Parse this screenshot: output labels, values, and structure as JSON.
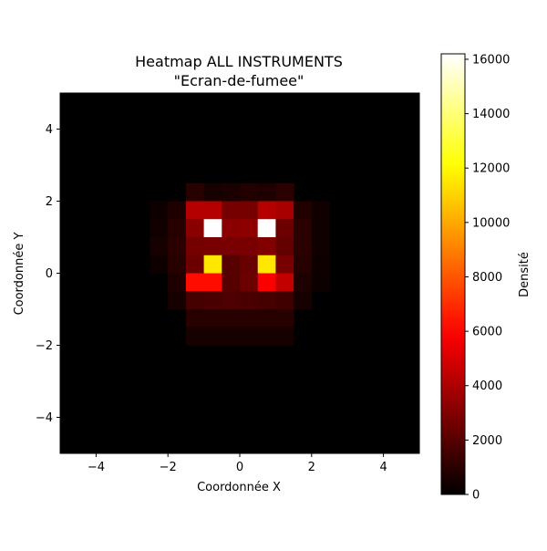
{
  "chart_data": {
    "type": "heatmap",
    "title_line1": "Heatmap ALL INSTRUMENTS",
    "title_line2": "\"Ecran-de-fumee\"",
    "xlabel": "Coordonnée X",
    "ylabel": "Coordonnée Y",
    "xlim": [
      -5,
      5
    ],
    "ylim": [
      -5,
      5
    ],
    "x_ticks": [
      -4,
      -2,
      0,
      2,
      4
    ],
    "y_ticks": [
      -4,
      -2,
      0,
      2,
      4
    ],
    "bin_width": 0.5,
    "colorbar": {
      "label": "Densité",
      "vmin": 0,
      "vmax": 16200,
      "ticks": [
        0,
        2000,
        4000,
        6000,
        8000,
        10000,
        12000,
        14000,
        16000
      ],
      "colormap": "hot"
    },
    "cells": [
      {
        "x": -1.5,
        "y": 2.0,
        "value": 900
      },
      {
        "x": -1.0,
        "y": 2.0,
        "value": 500
      },
      {
        "x": -0.5,
        "y": 2.0,
        "value": 600
      },
      {
        "x": 0.0,
        "y": 2.0,
        "value": 800
      },
      {
        "x": 0.5,
        "y": 2.0,
        "value": 700
      },
      {
        "x": 1.0,
        "y": 2.0,
        "value": 1000
      },
      {
        "x": -2.5,
        "y": 1.5,
        "value": 350
      },
      {
        "x": -2.0,
        "y": 1.5,
        "value": 700
      },
      {
        "x": -1.5,
        "y": 1.5,
        "value": 4200
      },
      {
        "x": -1.0,
        "y": 1.5,
        "value": 4200
      },
      {
        "x": -0.5,
        "y": 1.5,
        "value": 2700
      },
      {
        "x": 0.0,
        "y": 1.5,
        "value": 2700
      },
      {
        "x": 0.5,
        "y": 1.5,
        "value": 4200
      },
      {
        "x": 1.0,
        "y": 1.5,
        "value": 3900
      },
      {
        "x": 1.5,
        "y": 1.5,
        "value": 800
      },
      {
        "x": 2.0,
        "y": 1.5,
        "value": 400
      },
      {
        "x": -2.5,
        "y": 1.0,
        "value": 400
      },
      {
        "x": -2.0,
        "y": 1.0,
        "value": 900
      },
      {
        "x": -1.5,
        "y": 1.0,
        "value": 3200
      },
      {
        "x": -1.0,
        "y": 1.0,
        "value": 16200
      },
      {
        "x": -0.5,
        "y": 1.0,
        "value": 3200
      },
      {
        "x": 0.0,
        "y": 1.0,
        "value": 3300
      },
      {
        "x": 0.5,
        "y": 1.0,
        "value": 16200
      },
      {
        "x": 1.0,
        "y": 1.0,
        "value": 2500
      },
      {
        "x": 1.5,
        "y": 1.0,
        "value": 1000
      },
      {
        "x": 2.0,
        "y": 1.0,
        "value": 400
      },
      {
        "x": -2.5,
        "y": 0.5,
        "value": 500
      },
      {
        "x": -2.0,
        "y": 0.5,
        "value": 1000
      },
      {
        "x": -1.5,
        "y": 0.5,
        "value": 2700
      },
      {
        "x": -1.0,
        "y": 0.5,
        "value": 2800
      },
      {
        "x": -0.5,
        "y": 0.5,
        "value": 2800
      },
      {
        "x": 0.0,
        "y": 0.5,
        "value": 2800
      },
      {
        "x": 0.5,
        "y": 0.5,
        "value": 3000
      },
      {
        "x": 1.0,
        "y": 0.5,
        "value": 2300
      },
      {
        "x": 1.5,
        "y": 0.5,
        "value": 1000
      },
      {
        "x": 2.0,
        "y": 0.5,
        "value": 400
      },
      {
        "x": -2.5,
        "y": 0.0,
        "value": 350
      },
      {
        "x": -2.0,
        "y": 0.0,
        "value": 900
      },
      {
        "x": -1.5,
        "y": 0.0,
        "value": 2500
      },
      {
        "x": -1.0,
        "y": 0.0,
        "value": 11500
      },
      {
        "x": -0.5,
        "y": 0.0,
        "value": 2000
      },
      {
        "x": 0.0,
        "y": 0.0,
        "value": 2400
      },
      {
        "x": 0.5,
        "y": 0.0,
        "value": 11500
      },
      {
        "x": 1.0,
        "y": 0.0,
        "value": 2800
      },
      {
        "x": 1.5,
        "y": 0.0,
        "value": 900
      },
      {
        "x": 2.0,
        "y": 0.0,
        "value": 350
      },
      {
        "x": -2.0,
        "y": -0.5,
        "value": 700
      },
      {
        "x": -1.5,
        "y": -0.5,
        "value": 6200
      },
      {
        "x": -1.0,
        "y": -0.5,
        "value": 6200
      },
      {
        "x": -0.5,
        "y": -0.5,
        "value": 2000
      },
      {
        "x": 0.0,
        "y": -0.5,
        "value": 2500
      },
      {
        "x": 0.5,
        "y": -0.5,
        "value": 5800
      },
      {
        "x": 1.0,
        "y": -0.5,
        "value": 4500
      },
      {
        "x": 1.5,
        "y": -0.5,
        "value": 700
      },
      {
        "x": 2.0,
        "y": -0.5,
        "value": 300
      },
      {
        "x": -2.0,
        "y": -1.0,
        "value": 500
      },
      {
        "x": -1.5,
        "y": -1.0,
        "value": 1600
      },
      {
        "x": -1.0,
        "y": -1.0,
        "value": 1700
      },
      {
        "x": -0.5,
        "y": -1.0,
        "value": 1800
      },
      {
        "x": 0.0,
        "y": -1.0,
        "value": 1700
      },
      {
        "x": 0.5,
        "y": -1.0,
        "value": 1600
      },
      {
        "x": 1.0,
        "y": -1.0,
        "value": 1500
      },
      {
        "x": 1.5,
        "y": -1.0,
        "value": 500
      },
      {
        "x": -1.5,
        "y": -1.5,
        "value": 900
      },
      {
        "x": -1.0,
        "y": -1.5,
        "value": 900
      },
      {
        "x": -0.5,
        "y": -1.5,
        "value": 900
      },
      {
        "x": 0.0,
        "y": -1.5,
        "value": 900
      },
      {
        "x": 0.5,
        "y": -1.5,
        "value": 900
      },
      {
        "x": 1.0,
        "y": -1.5,
        "value": 900
      },
      {
        "x": -1.5,
        "y": -2.0,
        "value": 500
      },
      {
        "x": -1.0,
        "y": -2.0,
        "value": 500
      },
      {
        "x": -0.5,
        "y": -2.0,
        "value": 500
      },
      {
        "x": 0.0,
        "y": -2.0,
        "value": 500
      },
      {
        "x": 0.5,
        "y": -2.0,
        "value": 500
      },
      {
        "x": 1.0,
        "y": -2.0,
        "value": 500
      }
    ]
  }
}
